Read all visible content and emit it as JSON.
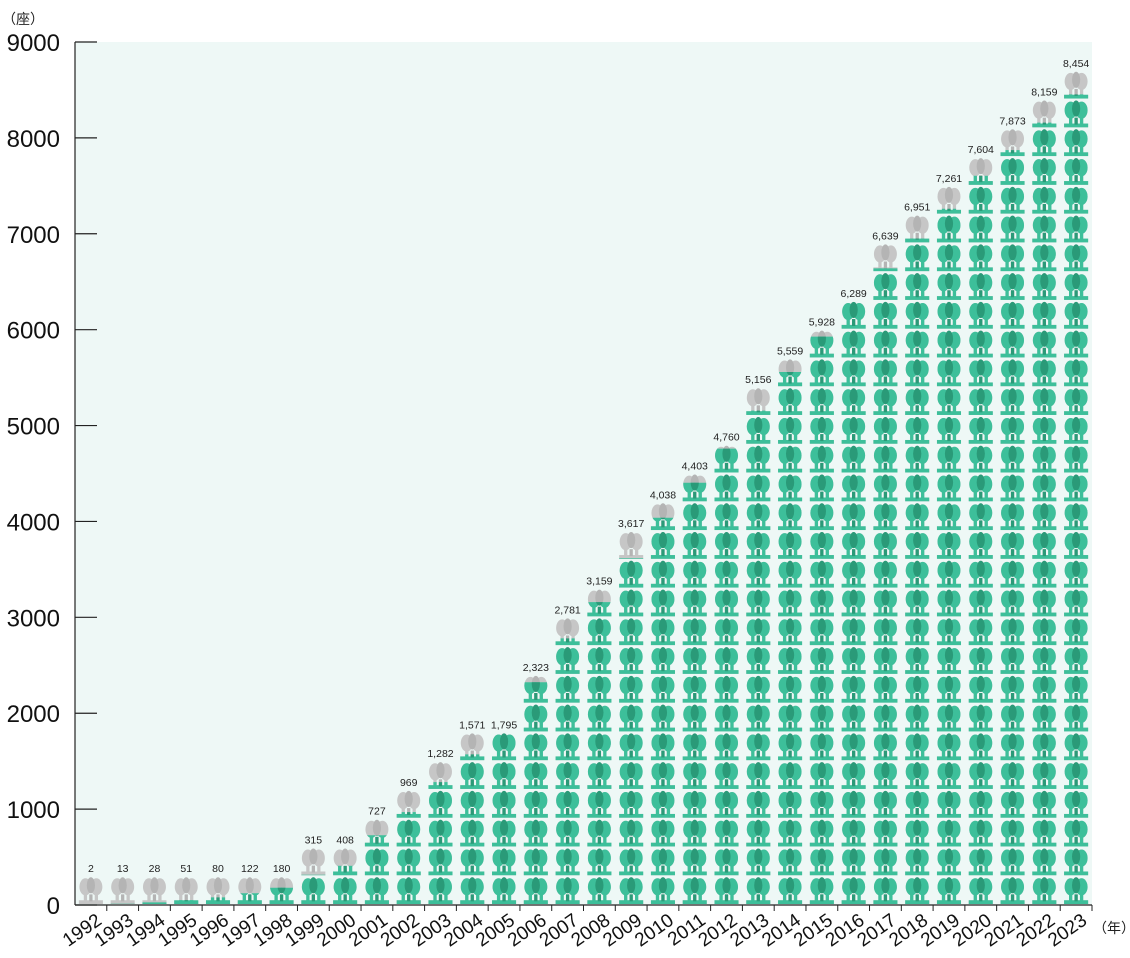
{
  "chart_data": {
    "type": "bar",
    "categories": [
      "1992",
      "1993",
      "1994",
      "1995",
      "1996",
      "1997",
      "1998",
      "1999",
      "2000",
      "2001",
      "2002",
      "2003",
      "2004",
      "2005",
      "2006",
      "2007",
      "2008",
      "2009",
      "2010",
      "2011",
      "2012",
      "2013",
      "2014",
      "2015",
      "2016",
      "2017",
      "2018",
      "2019",
      "2020",
      "2021",
      "2022",
      "2023"
    ],
    "values": [
      2,
      13,
      28,
      51,
      80,
      122,
      180,
      315,
      408,
      727,
      969,
      1282,
      1571,
      1795,
      2323,
      2781,
      3159,
      3617,
      4038,
      4403,
      4760,
      5156,
      5559,
      5928,
      6289,
      6639,
      6951,
      7261,
      7604,
      7873,
      8159,
      8454
    ],
    "value_labels": [
      "2",
      "13",
      "28",
      "51",
      "80",
      "122",
      "180",
      "315",
      "408",
      "727",
      "969",
      "1,282",
      "1,571",
      "1,795",
      "2,323",
      "2,781",
      "3,159",
      "3,617",
      "4,038",
      "4,403",
      "4,760",
      "5,156",
      "5,559",
      "5,928",
      "6,289",
      "6,639",
      "6,951",
      "7,261",
      "7,604",
      "7,873",
      "8,159",
      "8,454"
    ],
    "ylim": [
      0,
      9000
    ],
    "yticks": [
      0,
      1000,
      2000,
      3000,
      4000,
      5000,
      6000,
      7000,
      8000,
      9000
    ],
    "y_unit_label": "（座）",
    "x_unit_label": "（年）",
    "grid": false,
    "legend": "none",
    "icon_unit": 300,
    "icon": "pictogram-icon"
  },
  "colors": {
    "plot_background": "#eef8f6",
    "icon_fill": "#3dbf9a",
    "icon_dark": "#2a9a78",
    "icon_placeholder": "#c6c6c6",
    "axis": "#222222",
    "text": "#111111"
  }
}
